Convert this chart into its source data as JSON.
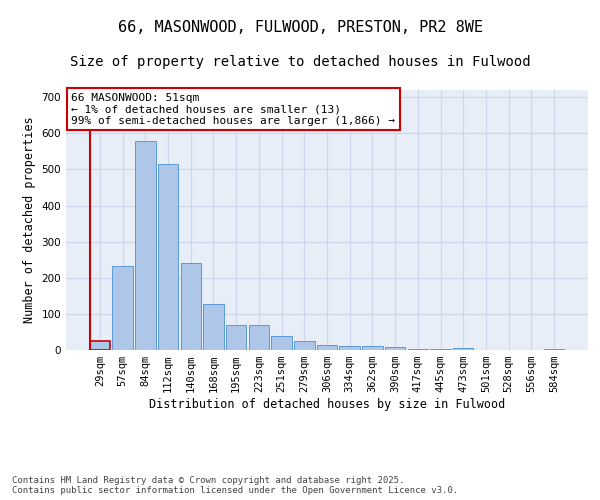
{
  "title1": "66, MASONWOOD, FULWOOD, PRESTON, PR2 8WE",
  "title2": "Size of property relative to detached houses in Fulwood",
  "xlabel": "Distribution of detached houses by size in Fulwood",
  "ylabel": "Number of detached properties",
  "categories": [
    "29sqm",
    "57sqm",
    "84sqm",
    "112sqm",
    "140sqm",
    "168sqm",
    "195sqm",
    "223sqm",
    "251sqm",
    "279sqm",
    "306sqm",
    "334sqm",
    "362sqm",
    "390sqm",
    "417sqm",
    "445sqm",
    "473sqm",
    "501sqm",
    "528sqm",
    "556sqm",
    "584sqm"
  ],
  "values": [
    25,
    233,
    578,
    515,
    240,
    127,
    70,
    70,
    40,
    26,
    15,
    12,
    10,
    9,
    3,
    3,
    5,
    0,
    0,
    0,
    3
  ],
  "bar_color": "#aec6e8",
  "bar_edge_color": "#5b9bd5",
  "highlight_color": "#cc0000",
  "annotation_text": "66 MASONWOOD: 51sqm\n← 1% of detached houses are smaller (13)\n99% of semi-detached houses are larger (1,866) →",
  "annotation_box_color": "#cc0000",
  "ylim": [
    0,
    720
  ],
  "yticks": [
    0,
    100,
    200,
    300,
    400,
    500,
    600,
    700
  ],
  "grid_color": "#cdd6e8",
  "background_color": "#e8eef8",
  "footer_text": "Contains HM Land Registry data © Crown copyright and database right 2025.\nContains public sector information licensed under the Open Government Licence v3.0.",
  "title_fontsize": 11,
  "subtitle_fontsize": 10,
  "axis_fontsize": 8.5,
  "tick_fontsize": 7.5,
  "annotation_fontsize": 8,
  "footer_fontsize": 6.5
}
